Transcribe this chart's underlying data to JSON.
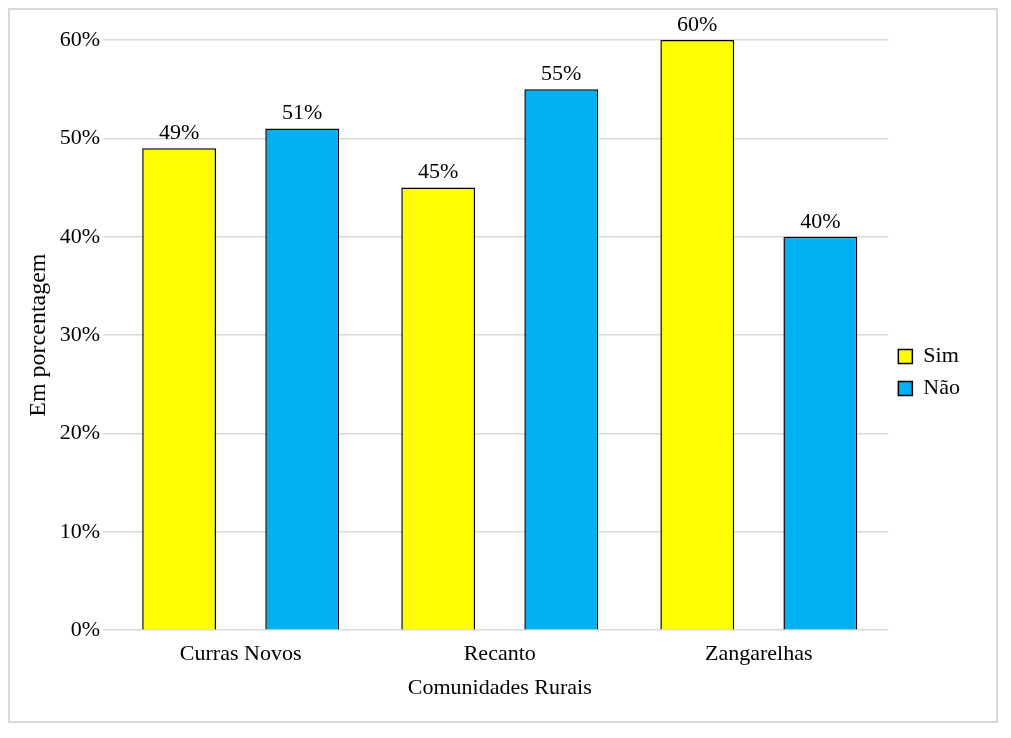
{
  "chart_data": {
    "type": "bar",
    "xlabel": "Comunidades Rurais",
    "ylabel": "Em porcentagem",
    "categories": [
      "Curras Novos",
      "Recanto",
      "Zangarelhas"
    ],
    "series": [
      {
        "name": "Sim",
        "color": "#ffff00",
        "values": [
          49,
          45,
          60
        ],
        "value_labels": [
          "49%",
          "45%",
          "60%"
        ]
      },
      {
        "name": "Não",
        "color": "#00b0f0",
        "values": [
          51,
          55,
          40
        ],
        "value_labels": [
          "51%",
          "55%",
          "40%"
        ]
      }
    ],
    "ylim": [
      0,
      60
    ],
    "yticks": [
      {
        "value": 0,
        "label": "0%"
      },
      {
        "value": 10,
        "label": "10%"
      },
      {
        "value": 20,
        "label": "20%"
      },
      {
        "value": 30,
        "label": "30%"
      },
      {
        "value": 40,
        "label": "40%"
      },
      {
        "value": 50,
        "label": "50%"
      },
      {
        "value": 60,
        "label": "60%"
      }
    ],
    "grid": "y",
    "legend": "right"
  }
}
